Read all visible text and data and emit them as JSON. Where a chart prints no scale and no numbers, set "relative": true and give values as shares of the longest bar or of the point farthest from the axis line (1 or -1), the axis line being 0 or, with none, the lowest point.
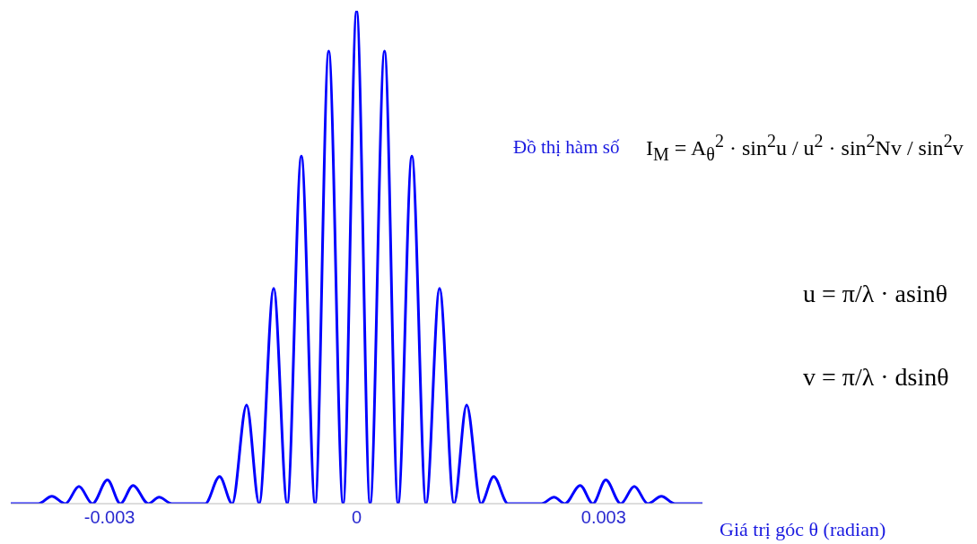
{
  "chart_data": {
    "type": "line",
    "relative": true,
    "xlabel": "Giá trị góc θ (radian)",
    "xlim": [
      -0.0042,
      0.0042
    ],
    "xticks": [
      -0.003,
      0,
      0.003
    ],
    "grid": false,
    "legend": false,
    "marker": "none",
    "line_style": "solid",
    "annotations": [
      "Đồ thị hàm số",
      "I$_{M}$ = A$_{θ}$$^{2}$ · sin$^{2}$u / u$^{2}$ · sin$^{2}$Nv / sin$^{2}$v",
      "u = π/λ · asinθ",
      "v = π/λ · dsinθ"
    ],
    "x": [
      -0.0042,
      -0.003865,
      -0.003701,
      -0.003537,
      -0.003372,
      -0.003208,
      -0.003026,
      -0.002869,
      -0.002715,
      -0.002529,
      -0.002398,
      -0.002245,
      -0.001839,
      -0.001664,
      -0.001511,
      -0.001336,
      -0.001183,
      -0.001007,
      -0.000843,
      -0.000671,
      -0.000504,
      -0.000339,
      -0.000164,
      0,
      0.000164,
      0.000339,
      0.000504,
      0.000671,
      0.000843,
      0.001007,
      0.001183,
      0.001336,
      0.001511,
      0.001664,
      0.001839,
      0.002245,
      0.002398,
      0.002529,
      0.002715,
      0.002869,
      0.003026,
      0.003208,
      0.003372,
      0.003537,
      0.003701,
      0.003865,
      0.0042
    ],
    "series": [
      {
        "color": "#0000ff",
        "values": [
          0,
          0,
          0.015,
          0,
          0.035,
          0,
          0.048,
          0,
          0.037,
          0,
          0.013,
          0,
          0,
          0.055,
          0,
          0.2,
          0,
          0.437,
          0,
          0.705,
          0,
          0.918,
          0,
          1,
          0,
          0.918,
          0,
          0.705,
          0,
          0.437,
          0,
          0.2,
          0,
          0.055,
          0,
          0,
          0.013,
          0,
          0.037,
          0,
          0.048,
          0,
          0.035,
          0,
          0.015,
          0,
          0
        ]
      }
    ]
  }
}
